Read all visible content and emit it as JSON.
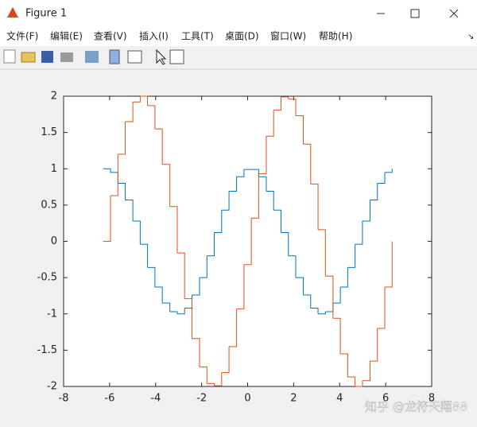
{
  "window": {
    "title": "Figure 1",
    "menu": [
      "文件(F)",
      "编辑(E)",
      "查看(V)",
      "插入(I)",
      "工具(T)",
      "桌面(D)",
      "窗口(W)",
      "帮助(H)"
    ]
  },
  "watermark": "知乎 @龙符天翔88",
  "chart_data": {
    "type": "stairs",
    "x": [
      -6.28,
      -5.96,
      -5.64,
      -5.32,
      -4.99,
      -4.67,
      -4.35,
      -4.03,
      -3.71,
      -3.38,
      -3.06,
      -2.74,
      -2.42,
      -2.09,
      -1.77,
      -1.45,
      -1.13,
      -0.81,
      -0.48,
      -0.16,
      0.16,
      0.48,
      0.81,
      1.13,
      1.45,
      1.77,
      2.09,
      2.42,
      2.74,
      3.06,
      3.38,
      3.71,
      4.03,
      4.35,
      4.67,
      4.99,
      5.32,
      5.64,
      5.96,
      6.28
    ],
    "series": [
      {
        "color": "#0072BD",
        "values": [
          1.0,
          0.95,
          0.8,
          0.57,
          0.28,
          -0.04,
          -0.36,
          -0.63,
          -0.85,
          -0.97,
          -1.0,
          -0.92,
          -0.74,
          -0.5,
          -0.2,
          0.12,
          0.43,
          0.69,
          0.89,
          0.99,
          0.99,
          0.89,
          0.69,
          0.43,
          0.12,
          -0.2,
          -0.5,
          -0.74,
          -0.92,
          -1.0,
          -0.97,
          -0.85,
          -0.63,
          -0.36,
          -0.04,
          0.28,
          0.57,
          0.8,
          0.95,
          1.0
        ]
      },
      {
        "color": "#D95319",
        "values": [
          0.0,
          0.63,
          1.2,
          1.65,
          1.92,
          2.0,
          1.87,
          1.55,
          1.06,
          0.48,
          -0.16,
          -0.79,
          -1.34,
          -1.73,
          -1.96,
          -1.99,
          -1.81,
          -1.45,
          -0.93,
          -0.32,
          0.32,
          0.93,
          1.45,
          1.81,
          1.99,
          1.96,
          1.73,
          1.34,
          0.79,
          0.16,
          -0.48,
          -1.06,
          -1.55,
          -1.87,
          -2.0,
          -1.92,
          -1.65,
          -1.2,
          -0.63,
          0.0
        ]
      }
    ],
    "xlim": [
      -8,
      8
    ],
    "xticks": [
      -8,
      -6,
      -4,
      -2,
      0,
      2,
      4,
      6,
      8
    ],
    "ylim": [
      -2,
      2
    ],
    "yticks": [
      -2,
      -1.5,
      -1,
      -0.5,
      0,
      0.5,
      1,
      1.5,
      2
    ]
  }
}
